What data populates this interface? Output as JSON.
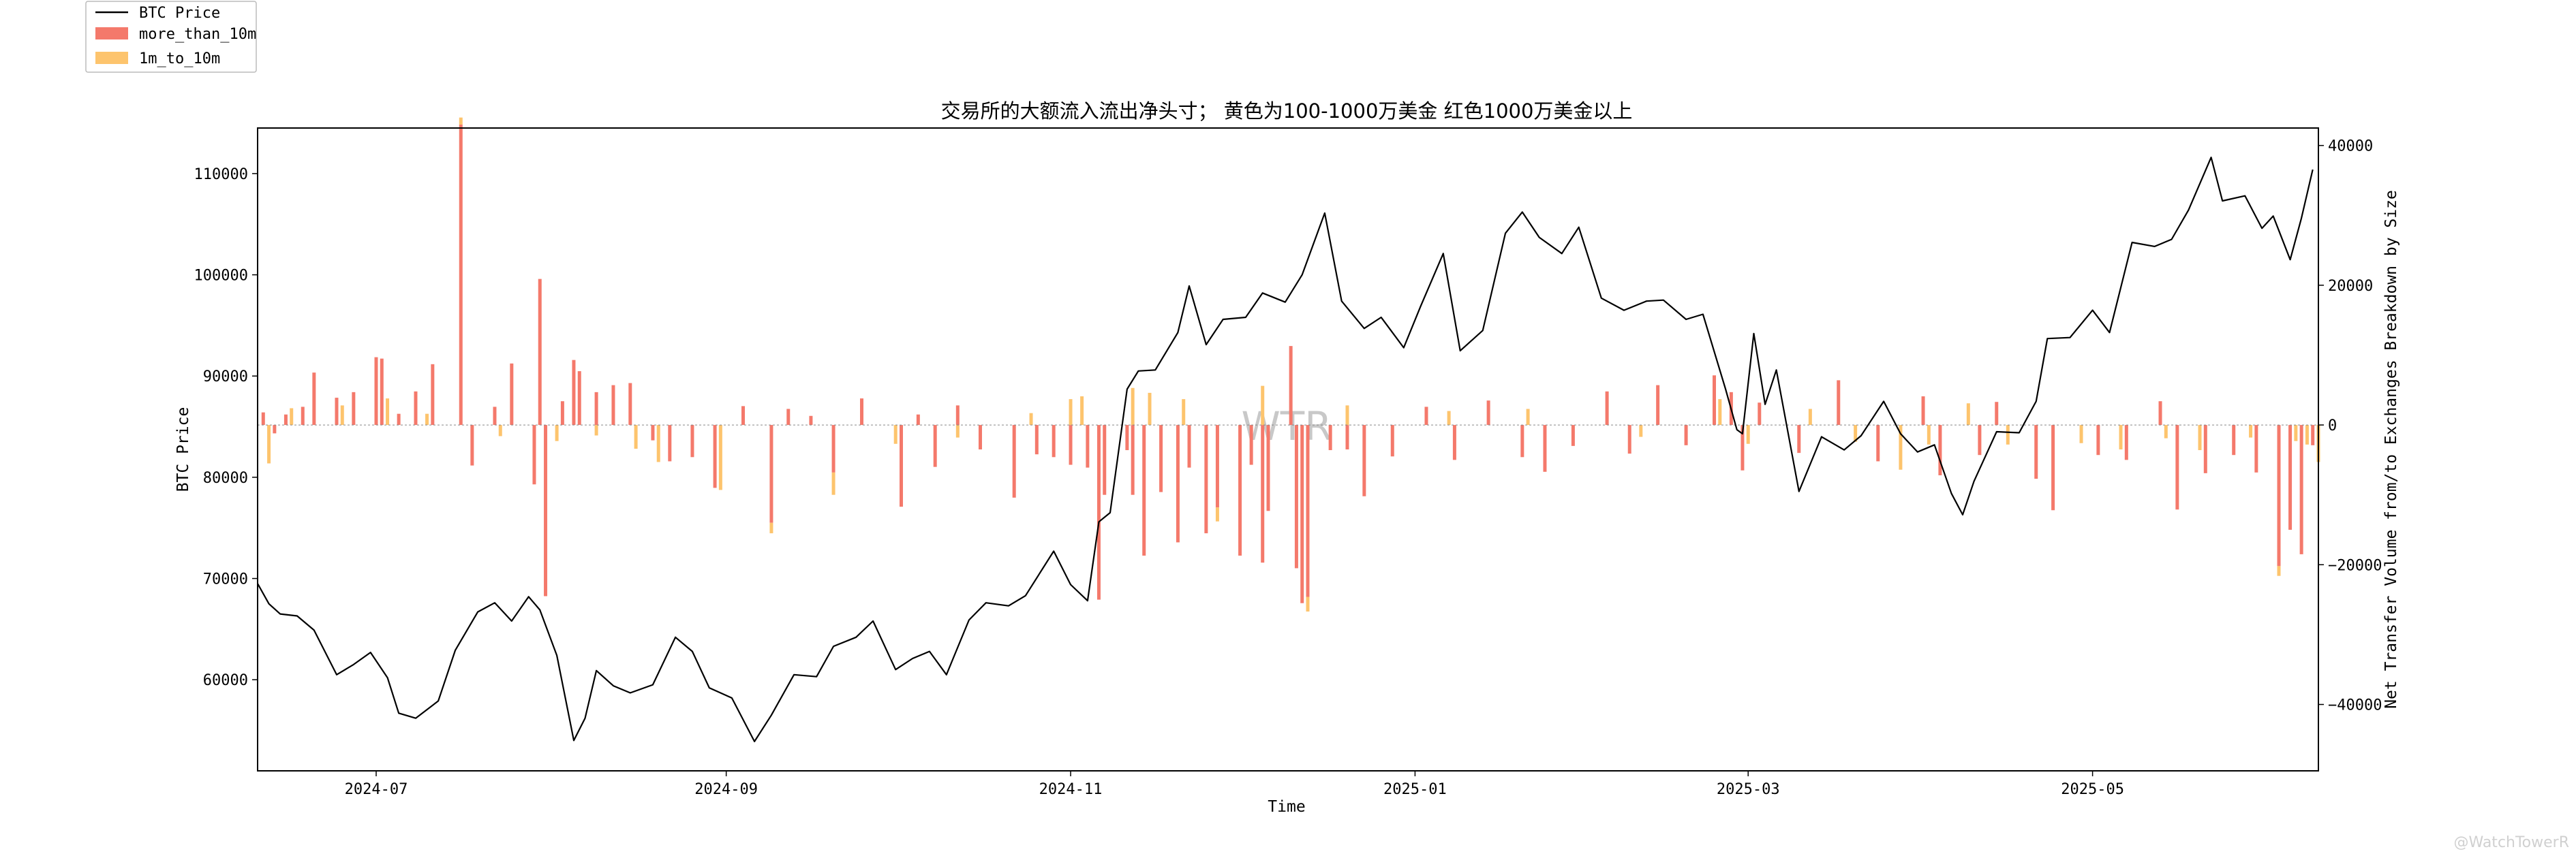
{
  "chart_data": {
    "type": "bar",
    "title": "交易所的大额流入流出净头寸；  黄色为100-1000万美金 红色1000万美金以上",
    "xlabel": "Time",
    "ylabel_left": "BTC Price",
    "ylabel_right": "Net Transfer Volume from/to Exchanges Breakdown by Size",
    "x_range": [
      "2024-06-10",
      "2025-06-10"
    ],
    "x_ticks": [
      "2024-07",
      "2024-09",
      "2024-11",
      "2025-01",
      "2025-03",
      "2025-05"
    ],
    "y_left_range": [
      51000,
      114500
    ],
    "y_left_ticks": [
      60000,
      70000,
      80000,
      90000,
      100000,
      110000
    ],
    "y_right_range": [
      -49500,
      42500
    ],
    "y_right_ticks": [
      -40000,
      -20000,
      0,
      20000,
      40000
    ],
    "grid": false,
    "legend_position": "outside top-left",
    "watermark": "WTR",
    "credit": "@WatchTowerR",
    "colors": {
      "price_line": "#000000",
      "more_than_10m": "#f4796b",
      "1m_to_10m": "#fdc46d"
    },
    "series": [
      {
        "name": "BTC Price",
        "type": "line",
        "axis": "left",
        "points": [
          [
            "2024-06-10",
            69500
          ],
          [
            "2024-06-12",
            67500
          ],
          [
            "2024-06-14",
            66500
          ],
          [
            "2024-06-17",
            66300
          ],
          [
            "2024-06-20",
            64900
          ],
          [
            "2024-06-24",
            60500
          ],
          [
            "2024-06-27",
            61500
          ],
          [
            "2024-06-30",
            62700
          ],
          [
            "2024-07-03",
            60200
          ],
          [
            "2024-07-05",
            56700
          ],
          [
            "2024-07-08",
            56200
          ],
          [
            "2024-07-12",
            57900
          ],
          [
            "2024-07-15",
            62900
          ],
          [
            "2024-07-19",
            66700
          ],
          [
            "2024-07-22",
            67600
          ],
          [
            "2024-07-25",
            65800
          ],
          [
            "2024-07-28",
            68200
          ],
          [
            "2024-07-30",
            66900
          ],
          [
            "2024-08-02",
            62400
          ],
          [
            "2024-08-05",
            54000
          ],
          [
            "2024-08-07",
            56200
          ],
          [
            "2024-08-09",
            60900
          ],
          [
            "2024-08-12",
            59400
          ],
          [
            "2024-08-15",
            58700
          ],
          [
            "2024-08-19",
            59500
          ],
          [
            "2024-08-23",
            64200
          ],
          [
            "2024-08-26",
            62800
          ],
          [
            "2024-08-29",
            59200
          ],
          [
            "2024-09-02",
            58200
          ],
          [
            "2024-09-06",
            53900
          ],
          [
            "2024-09-09",
            56500
          ],
          [
            "2024-09-13",
            60500
          ],
          [
            "2024-09-17",
            60300
          ],
          [
            "2024-09-20",
            63300
          ],
          [
            "2024-09-24",
            64200
          ],
          [
            "2024-09-27",
            65800
          ],
          [
            "2024-10-01",
            61000
          ],
          [
            "2024-10-04",
            62100
          ],
          [
            "2024-10-07",
            62800
          ],
          [
            "2024-10-10",
            60500
          ],
          [
            "2024-10-14",
            65900
          ],
          [
            "2024-10-17",
            67600
          ],
          [
            "2024-10-21",
            67300
          ],
          [
            "2024-10-24",
            68300
          ],
          [
            "2024-10-29",
            72700
          ],
          [
            "2024-11-01",
            69400
          ],
          [
            "2024-11-04",
            67800
          ],
          [
            "2024-11-06",
            75600
          ],
          [
            "2024-11-08",
            76500
          ],
          [
            "2024-11-11",
            88700
          ],
          [
            "2024-11-13",
            90500
          ],
          [
            "2024-11-16",
            90600
          ],
          [
            "2024-11-20",
            94300
          ],
          [
            "2024-11-22",
            98900
          ],
          [
            "2024-11-25",
            93100
          ],
          [
            "2024-11-28",
            95600
          ],
          [
            "2024-12-02",
            95800
          ],
          [
            "2024-12-05",
            98200
          ],
          [
            "2024-12-09",
            97300
          ],
          [
            "2024-12-12",
            100000
          ],
          [
            "2024-12-16",
            106100
          ],
          [
            "2024-12-19",
            97400
          ],
          [
            "2024-12-23",
            94700
          ],
          [
            "2024-12-26",
            95800
          ],
          [
            "2024-12-30",
            92800
          ],
          [
            "2025-01-02",
            96900
          ],
          [
            "2025-01-06",
            102100
          ],
          [
            "2025-01-09",
            92500
          ],
          [
            "2025-01-13",
            94500
          ],
          [
            "2025-01-17",
            104100
          ],
          [
            "2025-01-20",
            106200
          ],
          [
            "2025-01-23",
            103700
          ],
          [
            "2025-01-27",
            102100
          ],
          [
            "2025-01-30",
            104700
          ],
          [
            "2025-02-03",
            97700
          ],
          [
            "2025-02-07",
            96500
          ],
          [
            "2025-02-11",
            97400
          ],
          [
            "2025-02-14",
            97500
          ],
          [
            "2025-02-18",
            95600
          ],
          [
            "2025-02-21",
            96100
          ],
          [
            "2025-02-25",
            88700
          ],
          [
            "2025-02-27",
            84700
          ],
          [
            "2025-02-28",
            84300
          ],
          [
            "2025-03-02",
            94200
          ],
          [
            "2025-03-04",
            87200
          ],
          [
            "2025-03-06",
            90600
          ],
          [
            "2025-03-10",
            78600
          ],
          [
            "2025-03-14",
            84000
          ],
          [
            "2025-03-18",
            82700
          ],
          [
            "2025-03-21",
            84100
          ],
          [
            "2025-03-25",
            87500
          ],
          [
            "2025-03-28",
            84300
          ],
          [
            "2025-03-31",
            82500
          ],
          [
            "2025-04-03",
            83200
          ],
          [
            "2025-04-06",
            78400
          ],
          [
            "2025-04-08",
            76300
          ],
          [
            "2025-04-10",
            79600
          ],
          [
            "2025-04-14",
            84500
          ],
          [
            "2025-04-18",
            84400
          ],
          [
            "2025-04-21",
            87500
          ],
          [
            "2025-04-23",
            93700
          ],
          [
            "2025-04-27",
            93800
          ],
          [
            "2025-05-01",
            96500
          ],
          [
            "2025-05-04",
            94300
          ],
          [
            "2025-05-08",
            103200
          ],
          [
            "2025-05-12",
            102800
          ],
          [
            "2025-05-15",
            103500
          ],
          [
            "2025-05-18",
            106400
          ],
          [
            "2025-05-22",
            111600
          ],
          [
            "2025-05-24",
            107300
          ],
          [
            "2025-05-28",
            107800
          ],
          [
            "2025-05-31",
            104600
          ],
          [
            "2025-06-02",
            105800
          ],
          [
            "2025-06-05",
            101500
          ],
          [
            "2025-06-07",
            105600
          ],
          [
            "2025-06-09",
            110400
          ]
        ]
      },
      {
        "name": "more_than_10m",
        "type": "bar",
        "axis": "right",
        "note_on_sign": "positive = above zero line",
        "points": [
          [
            "2024-06-11",
            1800
          ],
          [
            "2024-06-13",
            -1200
          ],
          [
            "2024-06-15",
            1500
          ],
          [
            "2024-06-18",
            2600
          ],
          [
            "2024-06-20",
            7500
          ],
          [
            "2024-06-24",
            3900
          ],
          [
            "2024-06-27",
            4700
          ],
          [
            "2024-07-01",
            9700
          ],
          [
            "2024-07-02",
            9500
          ],
          [
            "2024-07-05",
            1600
          ],
          [
            "2024-07-08",
            4800
          ],
          [
            "2024-07-11",
            8700
          ],
          [
            "2024-07-16",
            43000
          ],
          [
            "2024-07-18",
            -5800
          ],
          [
            "2024-07-22",
            2600
          ],
          [
            "2024-07-25",
            8800
          ],
          [
            "2024-07-29",
            -8500
          ],
          [
            "2024-07-30",
            20900
          ],
          [
            "2024-07-31",
            -24500
          ],
          [
            "2024-08-03",
            3400
          ],
          [
            "2024-08-05",
            9300
          ],
          [
            "2024-08-06",
            7700
          ],
          [
            "2024-08-09",
            4700
          ],
          [
            "2024-08-12",
            5700
          ],
          [
            "2024-08-15",
            6000
          ],
          [
            "2024-08-19",
            -2200
          ],
          [
            "2024-08-22",
            -5200
          ],
          [
            "2024-08-26",
            -4600
          ],
          [
            "2024-08-30",
            -9000
          ],
          [
            "2024-09-04",
            2700
          ],
          [
            "2024-09-09",
            -14000
          ],
          [
            "2024-09-12",
            2300
          ],
          [
            "2024-09-16",
            1300
          ],
          [
            "2024-09-20",
            -6800
          ],
          [
            "2024-09-25",
            3800
          ],
          [
            "2024-10-02",
            -11700
          ],
          [
            "2024-10-05",
            1500
          ],
          [
            "2024-10-08",
            -6000
          ],
          [
            "2024-10-12",
            2800
          ],
          [
            "2024-10-16",
            -3500
          ],
          [
            "2024-10-22",
            -10400
          ],
          [
            "2024-10-26",
            -4200
          ],
          [
            "2024-10-29",
            -4600
          ],
          [
            "2024-11-01",
            -5700
          ],
          [
            "2024-11-04",
            -6100
          ],
          [
            "2024-11-06",
            -25000
          ],
          [
            "2024-11-07",
            -10000
          ],
          [
            "2024-11-11",
            -3600
          ],
          [
            "2024-11-12",
            -10000
          ],
          [
            "2024-11-14",
            -18700
          ],
          [
            "2024-11-17",
            -9600
          ],
          [
            "2024-11-20",
            -16800
          ],
          [
            "2024-11-22",
            -6100
          ],
          [
            "2024-11-25",
            -15500
          ],
          [
            "2024-11-27",
            -11800
          ],
          [
            "2024-12-01",
            -18700
          ],
          [
            "2024-12-03",
            -5700
          ],
          [
            "2024-12-05",
            -19700
          ],
          [
            "2024-12-06",
            -12300
          ],
          [
            "2024-12-10",
            11300
          ],
          [
            "2024-12-11",
            -20500
          ],
          [
            "2024-12-12",
            -25500
          ],
          [
            "2024-12-13",
            -24600
          ],
          [
            "2024-12-17",
            -3600
          ],
          [
            "2024-12-20",
            -3500
          ],
          [
            "2024-12-23",
            -10200
          ],
          [
            "2024-12-28",
            -4500
          ],
          [
            "2025-01-03",
            2600
          ],
          [
            "2025-01-08",
            -5000
          ],
          [
            "2025-01-14",
            3500
          ],
          [
            "2025-01-20",
            -4600
          ],
          [
            "2025-01-24",
            -6700
          ],
          [
            "2025-01-29",
            -3000
          ],
          [
            "2025-02-04",
            4800
          ],
          [
            "2025-02-08",
            -4100
          ],
          [
            "2025-02-13",
            5700
          ],
          [
            "2025-02-18",
            -2900
          ],
          [
            "2025-02-23",
            7100
          ],
          [
            "2025-02-26",
            4700
          ],
          [
            "2025-02-28",
            -6500
          ],
          [
            "2025-03-03",
            3200
          ],
          [
            "2025-03-10",
            -4000
          ],
          [
            "2025-03-17",
            6400
          ],
          [
            "2025-03-24",
            -5200
          ],
          [
            "2025-04-01",
            4100
          ],
          [
            "2025-04-04",
            -7200
          ],
          [
            "2025-04-11",
            -4300
          ],
          [
            "2025-04-14",
            3300
          ],
          [
            "2025-04-21",
            -7700
          ],
          [
            "2025-04-24",
            -12200
          ],
          [
            "2025-05-02",
            -4300
          ],
          [
            "2025-05-07",
            -5000
          ],
          [
            "2025-05-13",
            3400
          ],
          [
            "2025-05-16",
            -12100
          ],
          [
            "2025-05-21",
            -6900
          ],
          [
            "2025-05-26",
            -4300
          ],
          [
            "2025-05-30",
            -6800
          ],
          [
            "2025-06-03",
            -20200
          ],
          [
            "2025-06-05",
            -15000
          ],
          [
            "2025-06-07",
            -18500
          ],
          [
            "2025-06-09",
            -2900
          ]
        ]
      },
      {
        "name": "1m_to_10m",
        "type": "bar",
        "axis": "right",
        "stacked_on": "more_than_10m",
        "points": [
          [
            "2024-06-12",
            -5500
          ],
          [
            "2024-06-16",
            2400
          ],
          [
            "2024-06-25",
            2800
          ],
          [
            "2024-07-03",
            3800
          ],
          [
            "2024-07-10",
            1600
          ],
          [
            "2024-07-16",
            1000
          ],
          [
            "2024-07-23",
            -1600
          ],
          [
            "2024-08-02",
            -2300
          ],
          [
            "2024-08-09",
            -1500
          ],
          [
            "2024-08-16",
            -3400
          ],
          [
            "2024-08-20",
            -5300
          ],
          [
            "2024-08-31",
            -9300
          ],
          [
            "2024-09-09",
            -1500
          ],
          [
            "2024-09-20",
            -3200
          ],
          [
            "2024-10-01",
            -2700
          ],
          [
            "2024-10-12",
            -1800
          ],
          [
            "2024-10-25",
            1700
          ],
          [
            "2024-11-01",
            3700
          ],
          [
            "2024-11-03",
            4100
          ],
          [
            "2024-11-12",
            5300
          ],
          [
            "2024-11-15",
            4600
          ],
          [
            "2024-11-21",
            3700
          ],
          [
            "2024-11-27",
            -2000
          ],
          [
            "2024-12-05",
            5600
          ],
          [
            "2024-12-13",
            -2100
          ],
          [
            "2024-12-20",
            2800
          ],
          [
            "2025-01-07",
            2000
          ],
          [
            "2025-01-21",
            2300
          ],
          [
            "2025-02-10",
            -1700
          ],
          [
            "2025-02-24",
            3700
          ],
          [
            "2025-03-01",
            -2700
          ],
          [
            "2025-03-12",
            2300
          ],
          [
            "2025-03-20",
            -2400
          ],
          [
            "2025-03-28",
            -6400
          ],
          [
            "2025-04-02",
            -2800
          ],
          [
            "2025-04-09",
            3100
          ],
          [
            "2025-04-16",
            -2800
          ],
          [
            "2025-04-29",
            -2600
          ],
          [
            "2025-05-06",
            -3500
          ],
          [
            "2025-05-14",
            -1900
          ],
          [
            "2025-05-20",
            -3600
          ],
          [
            "2025-05-29",
            -1800
          ],
          [
            "2025-06-03",
            -1400
          ],
          [
            "2025-06-06",
            -2300
          ],
          [
            "2025-06-08",
            -2800
          ],
          [
            "2025-06-10",
            -5300
          ]
        ]
      }
    ]
  }
}
